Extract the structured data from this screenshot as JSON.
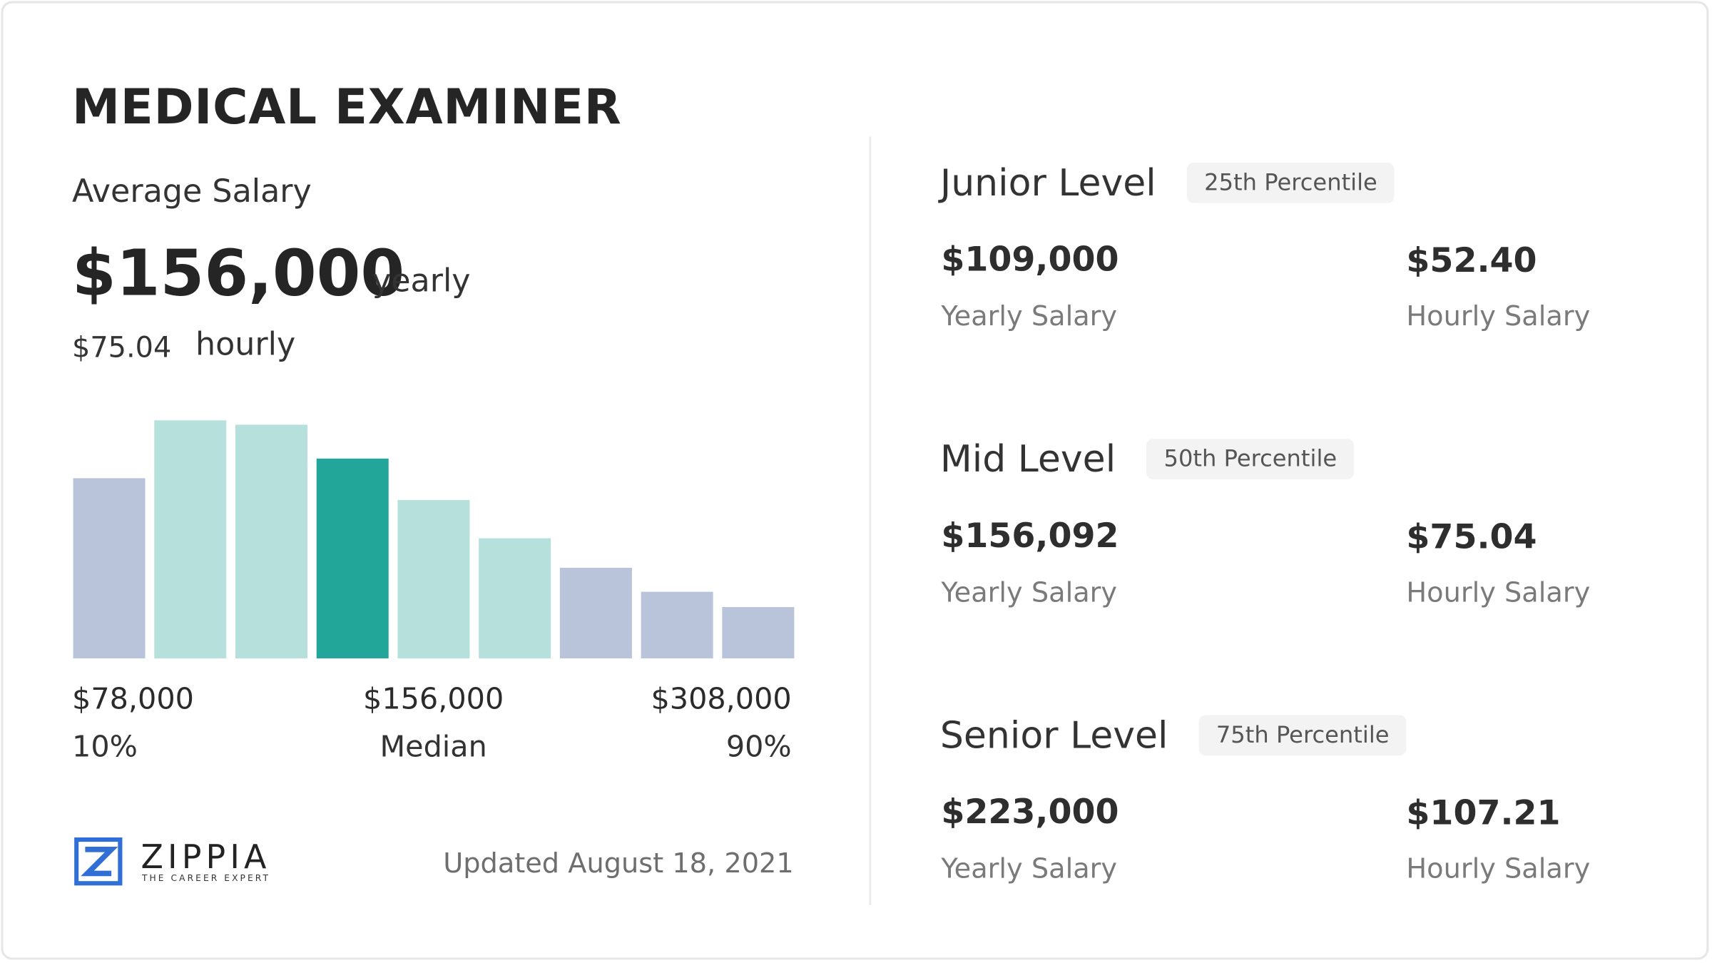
{
  "header": {
    "title": "MEDICAL EXAMINER"
  },
  "average": {
    "label": "Average Salary",
    "yearly_value": "$156,000",
    "yearly_unit": "yearly",
    "hourly_value": "$75.04",
    "hourly_unit": "hourly"
  },
  "chart_data": {
    "type": "bar",
    "values": [
      165,
      218,
      214,
      183,
      145,
      110,
      83,
      61,
      47
    ],
    "colors": [
      "#b9c3da",
      "#b5e0dc",
      "#b5e0dc",
      "#22a699",
      "#b5e0dc",
      "#b5e0dc",
      "#b9c3da",
      "#b9c3da",
      "#b9c3da"
    ]
  },
  "distribution": {
    "low_value": "$78,000",
    "low_label": "10%",
    "mid_value": "$156,000",
    "mid_label": "Median",
    "high_value": "$308,000",
    "high_label": "90%"
  },
  "levels": [
    {
      "name": "Junior Level",
      "percentile": "25th Percentile",
      "yearly": "$109,000",
      "yearly_label": "Yearly Salary",
      "hourly": "$52.40",
      "hourly_label": "Hourly Salary"
    },
    {
      "name": "Mid Level",
      "percentile": "50th Percentile",
      "yearly": "$156,092",
      "yearly_label": "Yearly Salary",
      "hourly": "$75.04",
      "hourly_label": "Hourly Salary"
    },
    {
      "name": "Senior Level",
      "percentile": "75th Percentile",
      "yearly": "$223,000",
      "yearly_label": "Yearly Salary",
      "hourly": "$107.21",
      "hourly_label": "Hourly Salary"
    }
  ],
  "footer": {
    "brand": "ZIPPIA",
    "tagline": "THE CAREER EXPERT",
    "updated": "Updated August 18, 2021"
  }
}
